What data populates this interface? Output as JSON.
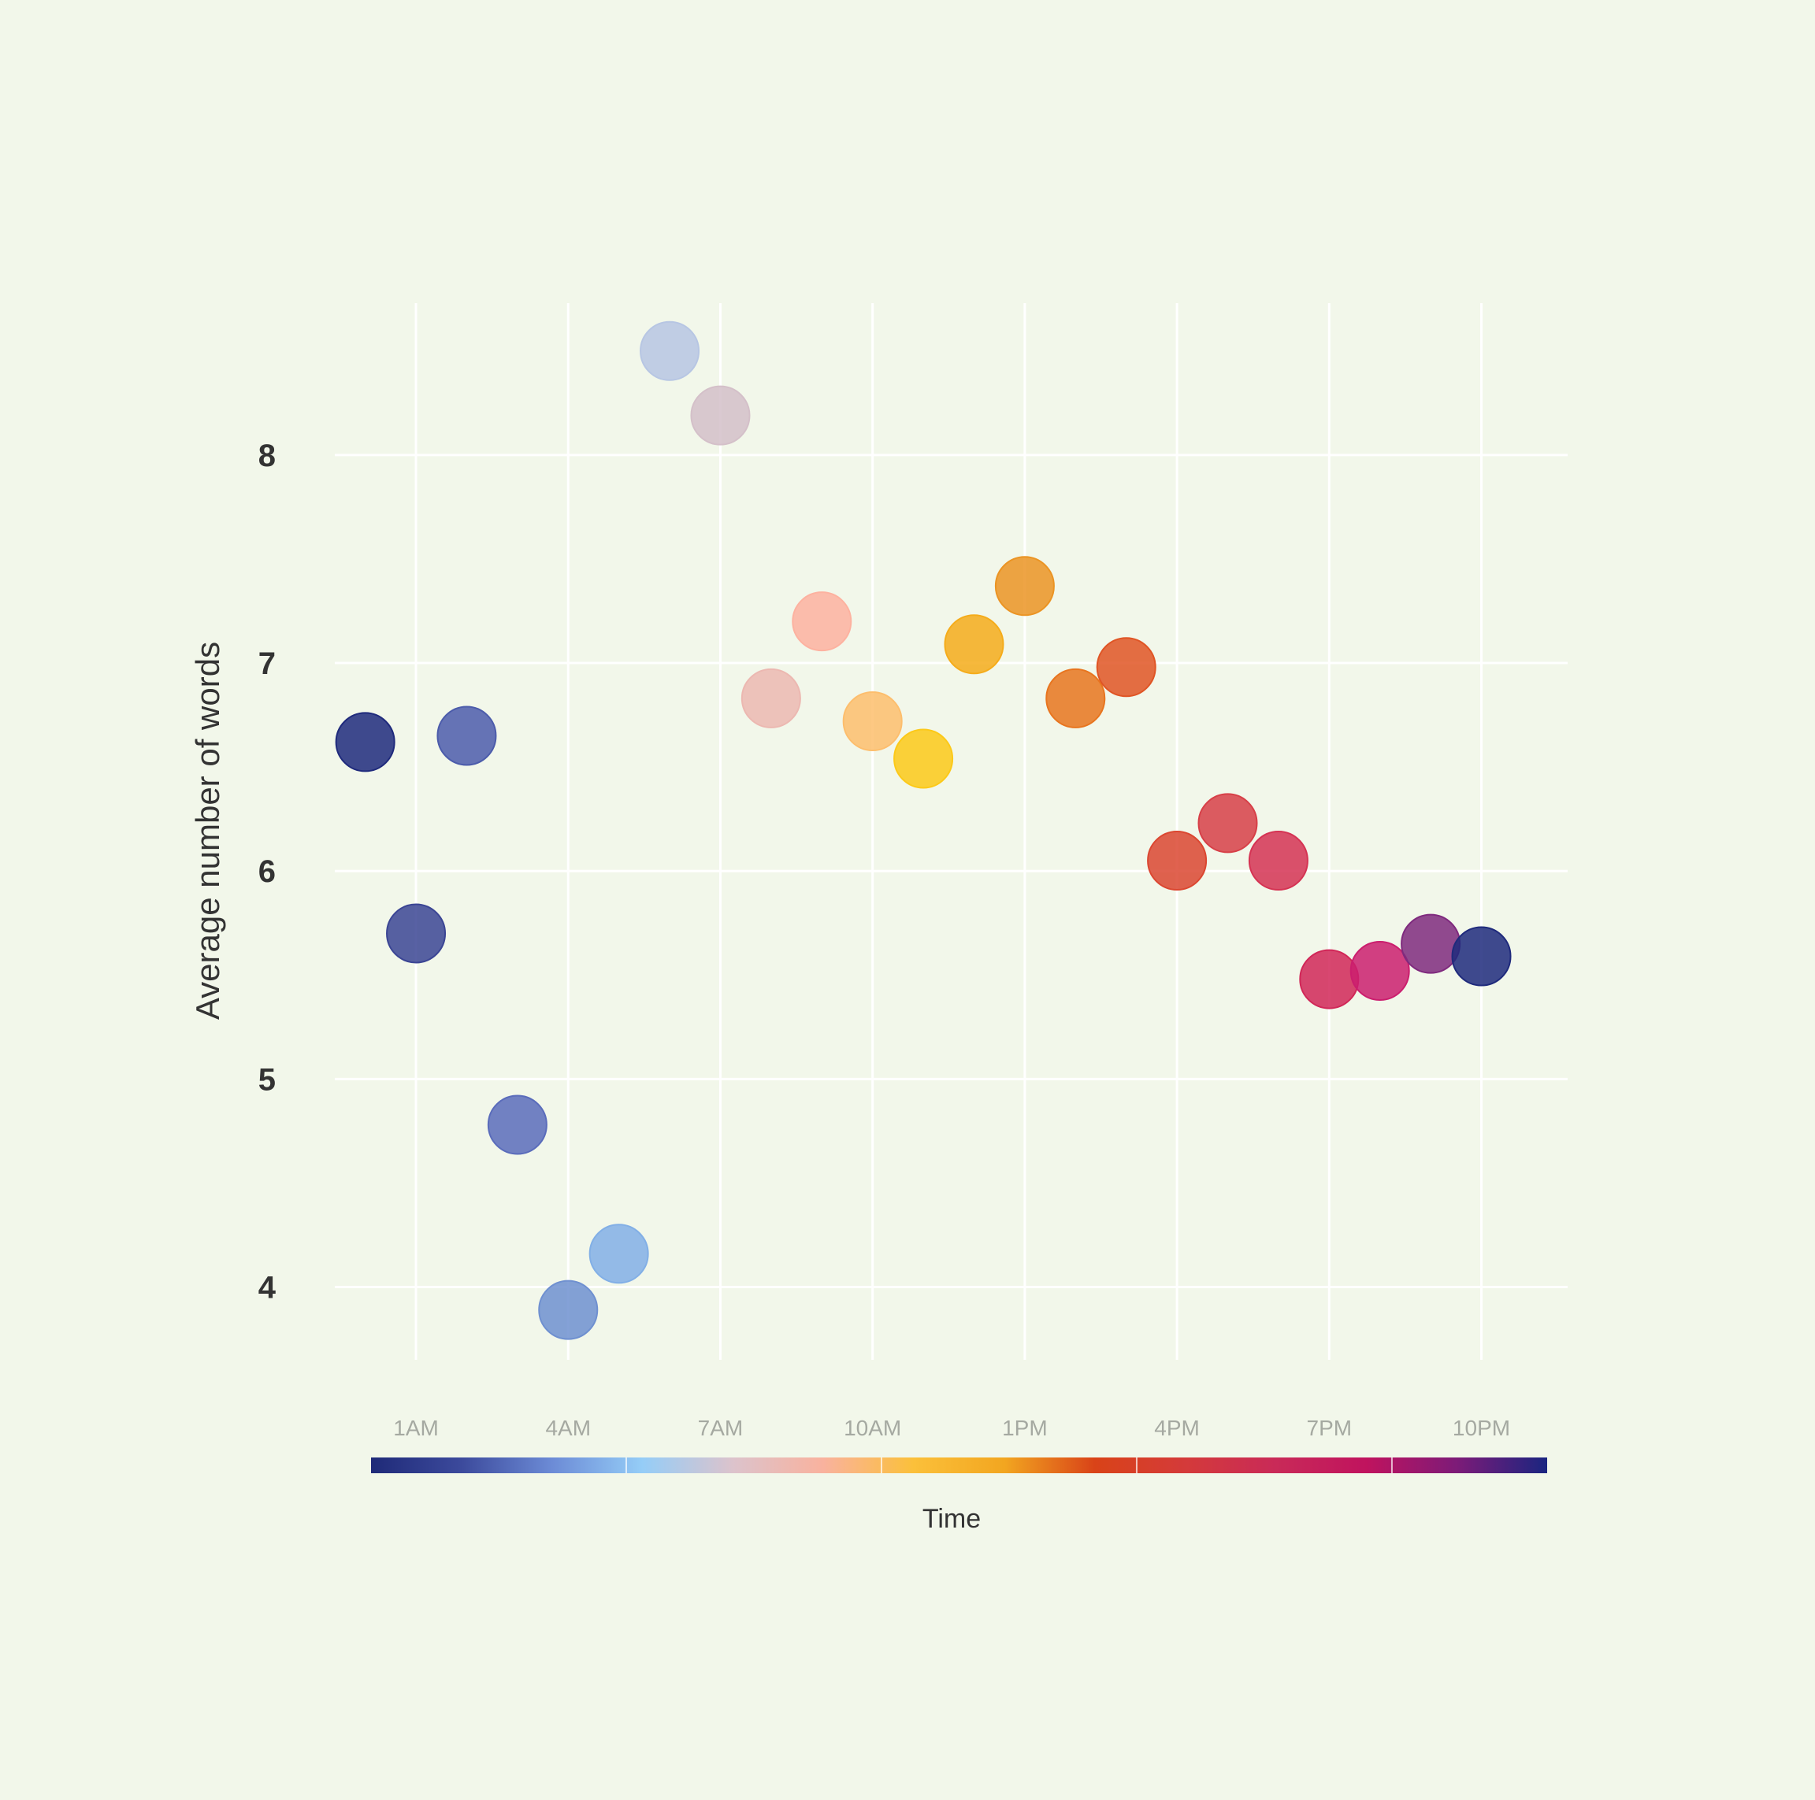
{
  "chart_data": {
    "type": "scatter",
    "title": "",
    "xlabel": "Time",
    "ylabel": "Average number of words",
    "x_ticks": [
      {
        "hour": 1,
        "label": "1AM"
      },
      {
        "hour": 4,
        "label": "4AM"
      },
      {
        "hour": 7,
        "label": "7AM"
      },
      {
        "hour": 10,
        "label": "10AM"
      },
      {
        "hour": 13,
        "label": "1PM"
      },
      {
        "hour": 16,
        "label": "4PM"
      },
      {
        "hour": 19,
        "label": "7PM"
      },
      {
        "hour": 22,
        "label": "10PM"
      }
    ],
    "y_ticks": [
      {
        "value": 4,
        "label": "4"
      },
      {
        "value": 5,
        "label": "5"
      },
      {
        "value": 6,
        "label": "6"
      },
      {
        "value": 7,
        "label": "7"
      },
      {
        "value": 8,
        "label": "8"
      }
    ],
    "xlim": [
      -0.6,
      23.7
    ],
    "ylim": [
      3.65,
      8.73
    ],
    "grid": true,
    "legend": "color bar below plot (Time)",
    "color_scale": [
      "#1f2a78",
      "#3c4a9c",
      "#6c8bd6",
      "#95cdf7",
      "#dcc3cc",
      "#f9b29e",
      "#fbc03a",
      "#f2a620",
      "#d94318",
      "#d43a3a",
      "#c92a58",
      "#c0135e",
      "#7d1b78",
      "#1a2580"
    ],
    "points": [
      {
        "hour": 0,
        "value": 6.62,
        "color": "#1f2a7c"
      },
      {
        "hour": 1,
        "value": 5.7,
        "color": "#3b4594"
      },
      {
        "hour": 2,
        "value": 6.65,
        "color": "#4c5cab"
      },
      {
        "hour": 3,
        "value": 4.78,
        "color": "#5a6cbb"
      },
      {
        "hour": 4,
        "value": 3.89,
        "color": "#6f90d0"
      },
      {
        "hour": 5,
        "value": 4.16,
        "color": "#82afe6"
      },
      {
        "hour": 6,
        "value": 8.5,
        "color": "#b7c6e3"
      },
      {
        "hour": 7,
        "value": 8.19,
        "color": "#d4c0c9"
      },
      {
        "hour": 8,
        "value": 6.83,
        "color": "#ecb8b1"
      },
      {
        "hour": 9,
        "value": 7.2,
        "color": "#fdb2a0"
      },
      {
        "hour": 10,
        "value": 6.72,
        "color": "#fdbe6d"
      },
      {
        "hour": 11,
        "value": 6.54,
        "color": "#fcc919"
      },
      {
        "hour": 12,
        "value": 7.09,
        "color": "#f5ac1b"
      },
      {
        "hour": 13,
        "value": 7.37,
        "color": "#eb9424"
      },
      {
        "hour": 14,
        "value": 6.83,
        "color": "#e8751f"
      },
      {
        "hour": 15,
        "value": 6.98,
        "color": "#e05525"
      },
      {
        "hour": 16,
        "value": 6.05,
        "color": "#db4731"
      },
      {
        "hour": 17,
        "value": 6.23,
        "color": "#d74048"
      },
      {
        "hour": 18,
        "value": 6.05,
        "color": "#d53353"
      },
      {
        "hour": 19,
        "value": 5.48,
        "color": "#d12758"
      },
      {
        "hour": 20,
        "value": 5.52,
        "color": "#cb1e6e"
      },
      {
        "hour": 21,
        "value": 5.65,
        "color": "#7f2a7e"
      },
      {
        "hour": 22,
        "value": 5.59,
        "color": "#1f2a7c"
      }
    ]
  }
}
